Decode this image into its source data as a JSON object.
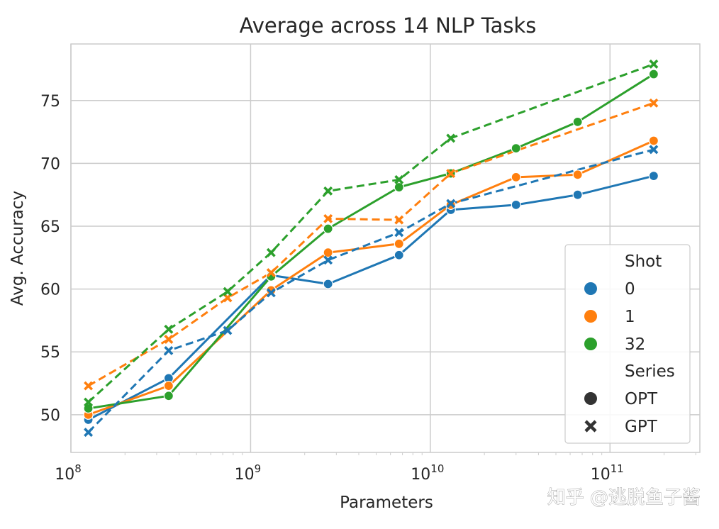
{
  "chart_data": {
    "type": "line",
    "title": "Average across 14 NLP Tasks",
    "xlabel": "Parameters",
    "ylabel": "Avg. Accuracy",
    "xscale": "log",
    "xlim_log10": [
      8.0,
      11.5
    ],
    "ylim": [
      47,
      79.5
    ],
    "xticks": [
      {
        "label_base": "10",
        "label_exp": "8",
        "log10": 8
      },
      {
        "label_base": "10",
        "label_exp": "9",
        "log10": 9
      },
      {
        "label_base": "10",
        "label_exp": "10",
        "log10": 10
      },
      {
        "label_base": "10",
        "label_exp": "11",
        "log10": 11
      }
    ],
    "yticks": [
      50,
      55,
      60,
      65,
      70,
      75
    ],
    "grid": true,
    "series": [
      {
        "name": "OPT 0-shot",
        "model": "OPT",
        "shot": "0",
        "color": "#1f77b4",
        "dashed": false,
        "marker": "circle",
        "x": [
          8.097,
          8.544,
          9.114,
          9.431,
          9.826,
          10.114,
          10.477,
          10.82,
          11.243
        ],
        "y": [
          49.6,
          52.9,
          61.1,
          60.4,
          62.7,
          66.3,
          66.7,
          67.5,
          69.0
        ]
      },
      {
        "name": "OPT 1-shot",
        "model": "OPT",
        "shot": "1",
        "color": "#ff7f0e",
        "dashed": false,
        "marker": "circle",
        "x": [
          8.097,
          8.544,
          9.114,
          9.431,
          9.826,
          10.114,
          10.477,
          10.82,
          11.243
        ],
        "y": [
          50.0,
          52.3,
          59.9,
          62.9,
          63.6,
          66.7,
          68.9,
          69.1,
          71.8
        ]
      },
      {
        "name": "OPT 32-shot",
        "model": "OPT",
        "shot": "32",
        "color": "#2ca02c",
        "dashed": false,
        "marker": "circle",
        "x": [
          8.097,
          8.544,
          9.114,
          9.431,
          9.826,
          10.114,
          10.477,
          10.82,
          11.243
        ],
        "y": [
          50.5,
          51.5,
          61.0,
          64.8,
          68.1,
          69.2,
          71.2,
          73.3,
          77.1
        ]
      },
      {
        "name": "GPT 0-shot",
        "model": "GPT",
        "shot": "0",
        "color": "#1f77b4",
        "dashed": true,
        "marker": "x",
        "x": [
          8.097,
          8.544,
          8.872,
          9.114,
          9.431,
          9.826,
          10.114,
          11.243
        ],
        "y": [
          48.6,
          55.1,
          56.7,
          59.7,
          62.3,
          64.5,
          66.8,
          71.1
        ]
      },
      {
        "name": "GPT 1-shot",
        "model": "GPT",
        "shot": "1",
        "color": "#ff7f0e",
        "dashed": true,
        "marker": "x",
        "x": [
          8.097,
          8.544,
          8.872,
          9.114,
          9.431,
          9.826,
          10.114,
          11.243
        ],
        "y": [
          52.3,
          56.0,
          59.3,
          61.3,
          65.6,
          65.5,
          69.2,
          74.8
        ]
      },
      {
        "name": "GPT 32-shot",
        "model": "GPT",
        "shot": "32",
        "color": "#2ca02c",
        "dashed": true,
        "marker": "x",
        "x": [
          8.097,
          8.544,
          8.872,
          9.114,
          9.431,
          9.826,
          10.114,
          11.243
        ],
        "y": [
          51.0,
          56.8,
          59.8,
          62.9,
          67.8,
          68.7,
          72.0,
          77.9
        ]
      }
    ],
    "legend": {
      "location": "lower right",
      "shot_heading": "Shot",
      "shot_items": [
        {
          "label": "0",
          "color": "#1f77b4"
        },
        {
          "label": "1",
          "color": "#ff7f0e"
        },
        {
          "label": "32",
          "color": "#2ca02c"
        }
      ],
      "series_heading": "Series",
      "series_items": [
        {
          "label": "OPT",
          "marker": "circle",
          "color": "#333333"
        },
        {
          "label": "GPT",
          "marker": "x",
          "color": "#333333"
        }
      ]
    }
  },
  "watermark": "知乎 @逃脱鱼子酱"
}
